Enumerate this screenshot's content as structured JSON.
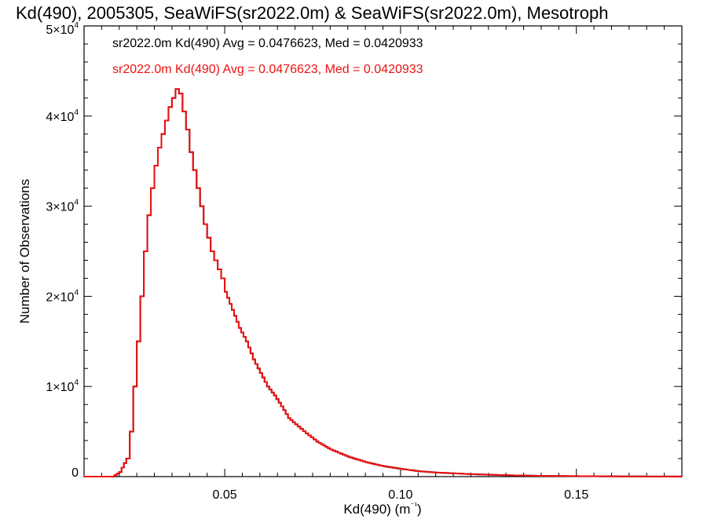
{
  "chart_data": {
    "type": "histogram",
    "title": "Kd(490), 2005305, SeaWiFS(sr2022.0m) & SeaWiFS(sr2022.0m), Mesotroph",
    "xlabel": "Kd(490) (m⁻¹)",
    "ylabel": "Number of Observations",
    "xlim": [
      0.01,
      0.18
    ],
    "ylim": [
      0,
      50000
    ],
    "x_ticks": [
      {
        "value": 0.05,
        "label": "0.05"
      },
      {
        "value": 0.1,
        "label": "0.10"
      },
      {
        "value": 0.15,
        "label": "0.15"
      }
    ],
    "y_ticks": [
      {
        "value": 0,
        "mant": "0",
        "exp": ""
      },
      {
        "value": 10000,
        "mant": "1×10",
        "exp": "4"
      },
      {
        "value": 20000,
        "mant": "2×10",
        "exp": "4"
      },
      {
        "value": 30000,
        "mant": "3×10",
        "exp": "4"
      },
      {
        "value": 40000,
        "mant": "4×10",
        "exp": "4"
      },
      {
        "value": 50000,
        "mant": "5×10",
        "exp": "4"
      }
    ],
    "annotations": [
      {
        "text": "sr2022.0m Kd(490) Avg = 0.0476623, Med = 0.0420933",
        "color": "#000000"
      },
      {
        "text": "sr2022.0m Kd(490) Avg = 0.0476623, Med = 0.0420933",
        "color": "#ee1111"
      }
    ],
    "series": [
      {
        "color_front": "#ee1111",
        "color_back": "#000000",
        "x": [
          0.01,
          0.018,
          0.02,
          0.022,
          0.023,
          0.024,
          0.025,
          0.026,
          0.027,
          0.028,
          0.029,
          0.03,
          0.031,
          0.032,
          0.033,
          0.034,
          0.035,
          0.036,
          0.037,
          0.038,
          0.039,
          0.04,
          0.041,
          0.042,
          0.043,
          0.044,
          0.045,
          0.046,
          0.047,
          0.048,
          0.049,
          0.05,
          0.052,
          0.054,
          0.056,
          0.058,
          0.06,
          0.062,
          0.064,
          0.066,
          0.068,
          0.07,
          0.073,
          0.076,
          0.08,
          0.085,
          0.09,
          0.095,
          0.1,
          0.105,
          0.11,
          0.12,
          0.13,
          0.14,
          0.15,
          0.16,
          0.17,
          0.18
        ],
        "y": [
          0,
          0,
          500,
          2000,
          5000,
          10000,
          15000,
          20000,
          25000,
          29000,
          32000,
          34500,
          36500,
          38000,
          39500,
          41000,
          42000,
          43000,
          42500,
          40500,
          38500,
          36000,
          34000,
          32000,
          30000,
          28000,
          26500,
          25000,
          24000,
          23000,
          22000,
          20500,
          18500,
          16500,
          15000,
          13000,
          11500,
          10000,
          9000,
          7800,
          6500,
          5800,
          4800,
          3900,
          3000,
          2200,
          1600,
          1150,
          850,
          600,
          450,
          270,
          150,
          80,
          50,
          30,
          15,
          5
        ]
      }
    ]
  }
}
